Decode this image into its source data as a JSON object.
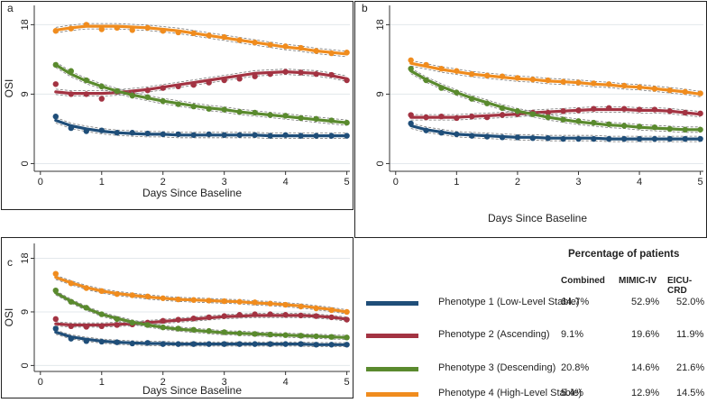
{
  "colors": {
    "p1": "#1f4e79",
    "p2": "#a33342",
    "p3": "#5a8a2e",
    "p4": "#f08c1e",
    "grid": "#e3e8ec"
  },
  "chart_data": [
    {
      "panel": "a",
      "type": "line",
      "xlabel": "Days Since Baseline",
      "ylabel": "OSI",
      "xlim": [
        -0.1,
        5.05
      ],
      "ylim": [
        -1,
        20.5
      ],
      "xticks": [
        0,
        1,
        2,
        3,
        4,
        5
      ],
      "yticks": [
        0,
        9,
        18
      ],
      "x": [
        0.25,
        0.5,
        0.75,
        1.0,
        1.25,
        1.5,
        1.75,
        2.0,
        2.25,
        2.5,
        2.75,
        3.0,
        3.25,
        3.5,
        3.75,
        4.0,
        4.25,
        4.5,
        4.75,
        5.0
      ],
      "series": [
        {
          "name": "Phenotype 1 (Low-Level Stable)",
          "key": "p1",
          "values": [
            6.1,
            4.6,
            4.2,
            4.3,
            4.0,
            4.0,
            3.9,
            3.8,
            3.8,
            3.7,
            3.8,
            3.7,
            3.7,
            3.7,
            3.6,
            3.7,
            3.6,
            3.6,
            3.6,
            3.6
          ],
          "fit": [
            5.6,
            4.9,
            4.5,
            4.2,
            4.0,
            3.9,
            3.8,
            3.8,
            3.7,
            3.7,
            3.7,
            3.7,
            3.7,
            3.7,
            3.6,
            3.6,
            3.6,
            3.6,
            3.6,
            3.6
          ]
        },
        {
          "name": "Phenotype 2 (Ascending)",
          "key": "p2",
          "values": [
            10.3,
            9.0,
            9.0,
            8.4,
            9.3,
            9.0,
            9.5,
            9.8,
            10.0,
            10.2,
            10.5,
            10.8,
            11.0,
            11.3,
            11.6,
            11.9,
            11.8,
            11.6,
            11.5,
            10.8
          ],
          "fit": [
            9.3,
            9.1,
            9.1,
            9.1,
            9.2,
            9.4,
            9.6,
            9.9,
            10.2,
            10.5,
            10.8,
            11.1,
            11.4,
            11.7,
            11.8,
            11.9,
            11.8,
            11.7,
            11.4,
            11.0
          ]
        },
        {
          "name": "Phenotype 3 (Descending)",
          "key": "p3",
          "values": [
            12.8,
            12.0,
            10.8,
            10.0,
            9.4,
            8.8,
            8.6,
            8.1,
            7.7,
            7.4,
            7.1,
            7.0,
            6.7,
            6.6,
            6.3,
            6.2,
            5.9,
            5.8,
            5.6,
            5.3
          ],
          "fit": [
            12.8,
            11.6,
            10.7,
            10.0,
            9.4,
            8.9,
            8.5,
            8.1,
            7.8,
            7.5,
            7.2,
            7.0,
            6.7,
            6.5,
            6.3,
            6.1,
            5.9,
            5.7,
            5.5,
            5.3
          ]
        },
        {
          "name": "Phenotype 4 (High-Level Stable)",
          "key": "p4",
          "values": [
            17.2,
            17.5,
            18.0,
            17.4,
            17.6,
            17.3,
            17.6,
            17.2,
            17.0,
            16.9,
            16.6,
            16.4,
            16.0,
            15.7,
            15.4,
            15.2,
            15.0,
            14.6,
            14.3,
            14.4
          ],
          "fit": [
            17.3,
            17.6,
            17.8,
            17.8,
            17.8,
            17.7,
            17.6,
            17.4,
            17.2,
            16.9,
            16.6,
            16.3,
            16.0,
            15.7,
            15.4,
            15.1,
            14.9,
            14.6,
            14.4,
            14.2
          ]
        }
      ]
    },
    {
      "panel": "b",
      "type": "line",
      "xlabel": "Days Since Baseline",
      "ylabel": "",
      "xlim": [
        -0.1,
        5.05
      ],
      "ylim": [
        -1,
        20.5
      ],
      "xticks": [
        0,
        1,
        2,
        3,
        4,
        5
      ],
      "yticks": [
        0,
        9,
        18
      ],
      "x": [
        0.25,
        0.5,
        0.75,
        1.0,
        1.25,
        1.5,
        1.75,
        2.0,
        2.25,
        2.5,
        2.75,
        3.0,
        3.25,
        3.5,
        3.75,
        4.0,
        4.25,
        4.5,
        4.75,
        5.0
      ],
      "series": [
        {
          "name": "Phenotype 1 (Low-Level Stable)",
          "key": "p1",
          "values": [
            5.2,
            4.3,
            4.0,
            3.8,
            3.6,
            3.5,
            3.4,
            3.4,
            3.3,
            3.3,
            3.2,
            3.2,
            3.2,
            3.2,
            3.2,
            3.2,
            3.2,
            3.2,
            3.2,
            3.2
          ],
          "fit": [
            4.9,
            4.4,
            4.1,
            3.8,
            3.7,
            3.6,
            3.5,
            3.4,
            3.4,
            3.3,
            3.3,
            3.3,
            3.3,
            3.2,
            3.2,
            3.2,
            3.2,
            3.2,
            3.2,
            3.2
          ]
        },
        {
          "name": "Phenotype 2 (Ascending)",
          "key": "p2",
          "values": [
            6.3,
            6.0,
            6.1,
            5.9,
            6.1,
            6.0,
            6.3,
            6.4,
            6.6,
            6.6,
            6.8,
            6.9,
            7.1,
            7.2,
            7.1,
            7.0,
            7.0,
            6.8,
            6.6,
            6.5
          ],
          "fit": [
            6.0,
            6.0,
            6.0,
            6.0,
            6.1,
            6.2,
            6.3,
            6.4,
            6.6,
            6.7,
            6.8,
            6.9,
            7.0,
            7.0,
            7.0,
            6.9,
            6.9,
            6.8,
            6.6,
            6.4
          ]
        },
        {
          "name": "Phenotype 3 (Descending)",
          "key": "p3",
          "values": [
            12.3,
            10.8,
            9.8,
            9.2,
            8.4,
            7.8,
            7.2,
            6.8,
            6.4,
            6.0,
            5.7,
            5.5,
            5.3,
            5.1,
            4.9,
            4.8,
            4.7,
            4.5,
            4.4,
            4.4
          ],
          "fit": [
            12.0,
            10.9,
            10.0,
            9.2,
            8.5,
            7.9,
            7.3,
            6.8,
            6.4,
            6.0,
            5.7,
            5.4,
            5.2,
            5.0,
            4.9,
            4.7,
            4.6,
            4.5,
            4.4,
            4.4
          ]
        },
        {
          "name": "Phenotype 4 (High-Level Stable)",
          "key": "p4",
          "values": [
            13.4,
            12.8,
            12.3,
            12.0,
            11.6,
            11.4,
            11.3,
            11.1,
            10.9,
            10.8,
            10.6,
            10.5,
            10.4,
            10.3,
            10.1,
            9.9,
            9.7,
            9.5,
            9.3,
            9.1
          ],
          "fit": [
            13.0,
            12.6,
            12.2,
            11.9,
            11.6,
            11.4,
            11.2,
            11.0,
            10.9,
            10.7,
            10.6,
            10.5,
            10.3,
            10.2,
            10.0,
            9.9,
            9.7,
            9.5,
            9.3,
            9.0
          ]
        }
      ]
    },
    {
      "panel": "c",
      "type": "line",
      "xlabel": "Days Since Baseline",
      "ylabel": "OSI",
      "xlim": [
        -0.1,
        5.05
      ],
      "ylim": [
        -1,
        20.5
      ],
      "xticks": [
        0,
        1,
        2,
        3,
        4,
        5
      ],
      "yticks": [
        0,
        9,
        18
      ],
      "x": [
        0.25,
        0.5,
        0.75,
        1.0,
        1.25,
        1.5,
        1.75,
        2.0,
        2.25,
        2.5,
        2.75,
        3.0,
        3.25,
        3.5,
        3.75,
        4.0,
        4.25,
        4.5,
        4.75,
        5.0
      ],
      "series": [
        {
          "name": "Phenotype 1 (Low-Level Stable)",
          "key": "p1",
          "values": [
            6.2,
            4.5,
            4.1,
            4.0,
            3.9,
            3.7,
            3.8,
            3.6,
            3.6,
            3.6,
            3.6,
            3.6,
            3.6,
            3.6,
            3.6,
            3.6,
            3.6,
            3.5,
            3.5,
            3.5
          ],
          "fit": [
            5.6,
            4.8,
            4.4,
            4.1,
            3.9,
            3.8,
            3.7,
            3.7,
            3.6,
            3.6,
            3.6,
            3.6,
            3.6,
            3.6,
            3.6,
            3.6,
            3.6,
            3.5,
            3.5,
            3.5
          ]
        },
        {
          "name": "Phenotype 2 (Ascending)",
          "key": "p2",
          "values": [
            7.8,
            6.6,
            6.5,
            6.6,
            6.8,
            6.9,
            7.2,
            7.5,
            7.7,
            7.9,
            8.1,
            8.3,
            8.5,
            8.6,
            8.6,
            8.5,
            8.4,
            8.3,
            8.1,
            7.7
          ],
          "fit": [
            7.0,
            6.8,
            6.8,
            6.8,
            6.9,
            7.0,
            7.2,
            7.4,
            7.6,
            7.8,
            8.0,
            8.2,
            8.3,
            8.4,
            8.4,
            8.4,
            8.4,
            8.3,
            8.1,
            7.8
          ]
        },
        {
          "name": "Phenotype 3 (Descending)",
          "key": "p3",
          "values": [
            12.6,
            10.7,
            9.7,
            8.6,
            7.8,
            7.2,
            6.8,
            6.4,
            6.2,
            6.0,
            5.8,
            5.6,
            5.4,
            5.3,
            5.2,
            5.1,
            5.0,
            4.9,
            4.8,
            4.7
          ],
          "fit": [
            12.2,
            10.8,
            9.6,
            8.6,
            7.9,
            7.3,
            6.8,
            6.4,
            6.1,
            5.9,
            5.7,
            5.5,
            5.4,
            5.3,
            5.2,
            5.1,
            5.0,
            4.9,
            4.8,
            4.7
          ]
        },
        {
          "name": "Phenotype 4 (High-Level Stable)",
          "key": "p4",
          "values": [
            15.4,
            13.8,
            13.0,
            12.5,
            12.0,
            11.8,
            11.6,
            11.3,
            11.1,
            11.0,
            10.9,
            10.8,
            10.7,
            10.6,
            10.4,
            10.2,
            9.9,
            9.6,
            9.3,
            9.0
          ],
          "fit": [
            14.8,
            13.9,
            13.1,
            12.5,
            12.1,
            11.8,
            11.5,
            11.3,
            11.1,
            11.0,
            10.9,
            10.8,
            10.7,
            10.5,
            10.4,
            10.2,
            10.0,
            9.7,
            9.4,
            9.0
          ]
        }
      ]
    }
  ],
  "legend": {
    "title": "Percentage of patients",
    "headers": [
      "Combined",
      "MIMIC-IV",
      "EICU-CRD"
    ],
    "rows": [
      {
        "label": "Phenotype 1 (Low-Level Stable)",
        "key": "p1",
        "combined": "64.7%",
        "mimic": "52.9%",
        "eicu": "52.0%"
      },
      {
        "label": "Phenotype 2 (Ascending)",
        "key": "p2",
        "combined": "9.1%",
        "mimic": "19.6%",
        "eicu": "11.9%"
      },
      {
        "label": "Phenotype 3 (Descending)",
        "key": "p3",
        "combined": "20.8%",
        "mimic": "14.6%",
        "eicu": "21.6%"
      },
      {
        "label": "Phenotype 4 (High-Level Stable)",
        "key": "p4",
        "combined": "5.4%",
        "mimic": "12.9%",
        "eicu": "14.5%"
      }
    ]
  }
}
